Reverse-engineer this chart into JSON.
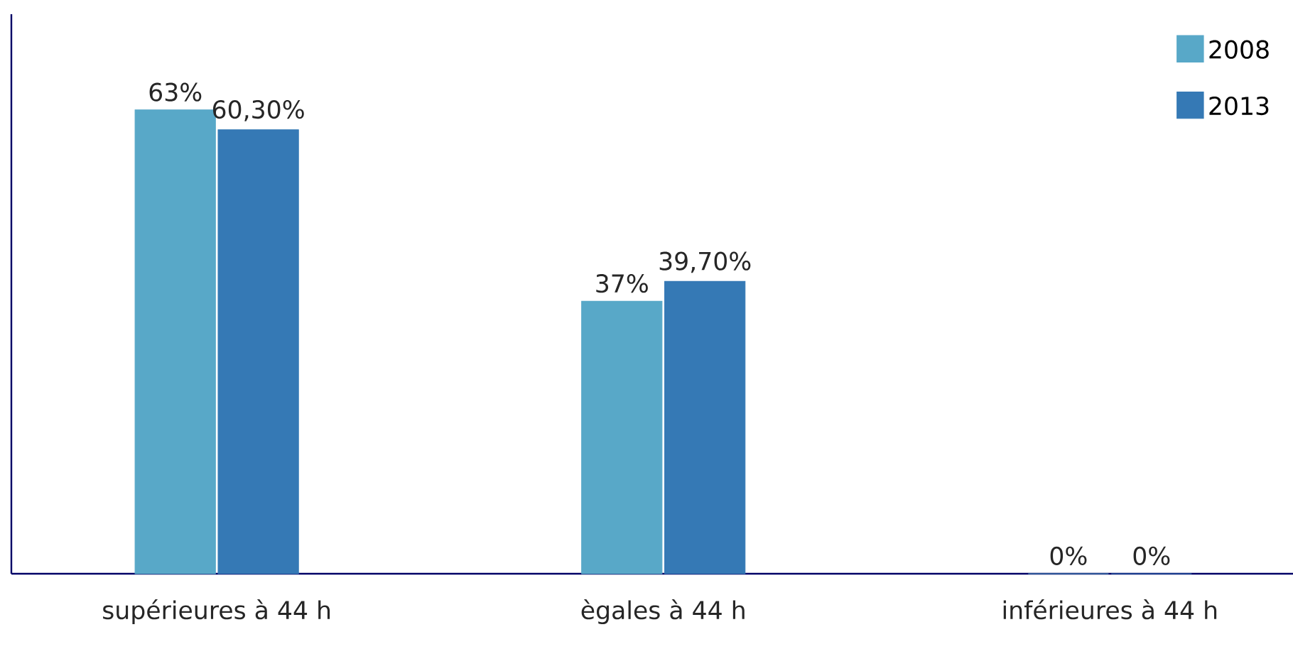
{
  "chart_data": {
    "type": "bar",
    "categories": [
      "supérieures à 44 h",
      "ègales à 44 h",
      "inférieures à 44 h"
    ],
    "series": [
      {
        "name": "2008",
        "color": "#58a8c8",
        "values": [
          63,
          37,
          0
        ],
        "value_labels": [
          "63%",
          "37%",
          "0%"
        ]
      },
      {
        "name": "2013",
        "color": "#3579b5",
        "values": [
          60.3,
          39.7,
          0
        ],
        "value_labels": [
          "60,30%",
          "39,70%",
          "0%"
        ]
      }
    ],
    "ylim": [
      0,
      76
    ],
    "legend": "top right"
  }
}
